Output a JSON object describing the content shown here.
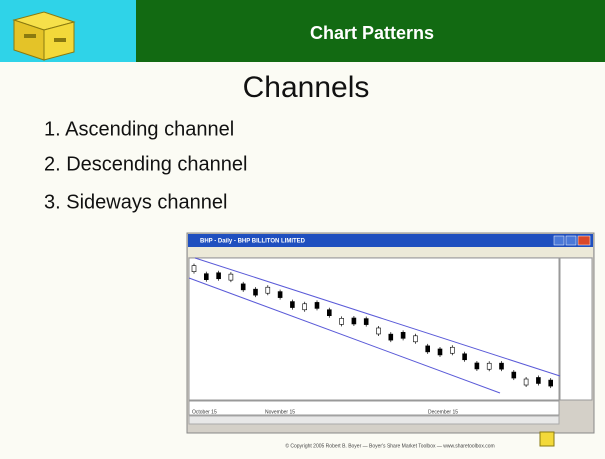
{
  "header": {
    "title": "Chart Patterns"
  },
  "slide": {
    "title": "Channels",
    "items": [
      "1.  Ascending channel",
      "2.  Descending channel",
      "3.  Sideways channel"
    ]
  },
  "window": {
    "title": "BHP - Daily - BHP BILLITON LIMITED",
    "months": [
      "October 15",
      "November 15",
      "December 15"
    ]
  },
  "footer": "© Copyright 2005 Robert B. Boyer — Boyer's Share Market Toolbox — www.sharetoolbox.com"
}
